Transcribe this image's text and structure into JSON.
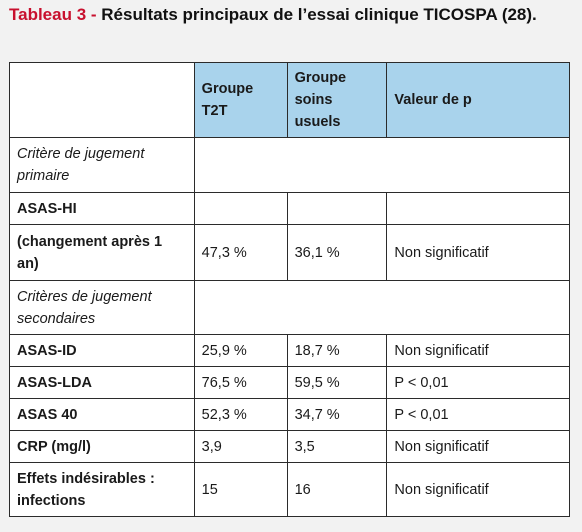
{
  "caption": {
    "label": "Tableau 3 - ",
    "text": "Résultats principaux de l’essai clinique TICOSPA (28)."
  },
  "table": {
    "headers": [
      "",
      "Groupe T2T",
      "Groupe soins usuels",
      "Valeur de p"
    ],
    "rows": [
      {
        "type": "section",
        "cells": [
          "Critère de jugement primaire",
          "",
          "",
          ""
        ]
      },
      {
        "type": "data",
        "cells": [
          "ASAS-HI",
          "",
          "",
          ""
        ]
      },
      {
        "type": "data",
        "cells": [
          "(changement après 1 an)",
          "47,3 %",
          "36,1 %",
          "Non significatif"
        ]
      },
      {
        "type": "section",
        "cells": [
          "Critères de jugement secondaires",
          "",
          "",
          ""
        ]
      },
      {
        "type": "data",
        "cells": [
          "ASAS-ID",
          "25,9 %",
          "18,7 %",
          "Non significatif"
        ]
      },
      {
        "type": "data",
        "cells": [
          "ASAS-LDA",
          "76,5 %",
          "59,5 %",
          "P < 0,01"
        ]
      },
      {
        "type": "data",
        "cells": [
          "ASAS 40",
          "52,3 %",
          "34,7 %",
          "P < 0,01"
        ]
      },
      {
        "type": "data",
        "cells": [
          "CRP (mg/l)",
          "3,9",
          "3,5",
          "Non significatif"
        ]
      },
      {
        "type": "data",
        "cells": [
          "Effets indésirables : infections",
          "15",
          "16",
          "Non significatif"
        ]
      }
    ]
  }
}
